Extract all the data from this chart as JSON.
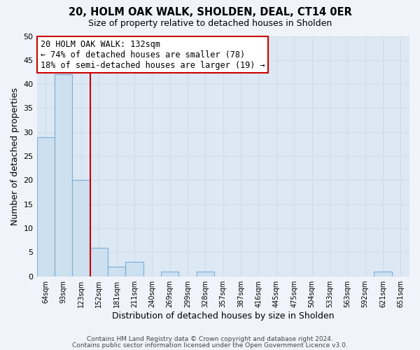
{
  "title": "20, HOLM OAK WALK, SHOLDEN, DEAL, CT14 0ER",
  "subtitle": "Size of property relative to detached houses in Sholden",
  "xlabel": "Distribution of detached houses by size in Sholden",
  "ylabel": "Number of detached properties",
  "bin_labels": [
    "64sqm",
    "93sqm",
    "123sqm",
    "152sqm",
    "181sqm",
    "211sqm",
    "240sqm",
    "269sqm",
    "299sqm",
    "328sqm",
    "357sqm",
    "387sqm",
    "416sqm",
    "445sqm",
    "475sqm",
    "504sqm",
    "533sqm",
    "563sqm",
    "592sqm",
    "621sqm",
    "651sqm"
  ],
  "bar_values": [
    29,
    42,
    20,
    6,
    2,
    3,
    0,
    1,
    0,
    1,
    0,
    0,
    0,
    0,
    0,
    0,
    0,
    0,
    0,
    1,
    0
  ],
  "bar_color": "#cce0f0",
  "bar_edge_color": "#7bafd4",
  "vline_x": 2.5,
  "vline_color": "#cc0000",
  "annotation_title": "20 HOLM OAK WALK: 132sqm",
  "annotation_line1": "← 74% of detached houses are smaller (78)",
  "annotation_line2": "18% of semi-detached houses are larger (19) →",
  "annotation_box_color": "white",
  "annotation_box_edge": "#cc0000",
  "ylim": [
    0,
    50
  ],
  "yticks": [
    0,
    5,
    10,
    15,
    20,
    25,
    30,
    35,
    40,
    45,
    50
  ],
  "footer1": "Contains HM Land Registry data © Crown copyright and database right 2024.",
  "footer2": "Contains public sector information licensed under the Open Government Licence v3.0.",
  "bg_color": "#f0f4fa",
  "grid_color": "#d0dce8",
  "plot_bg_color": "#dce8f4"
}
